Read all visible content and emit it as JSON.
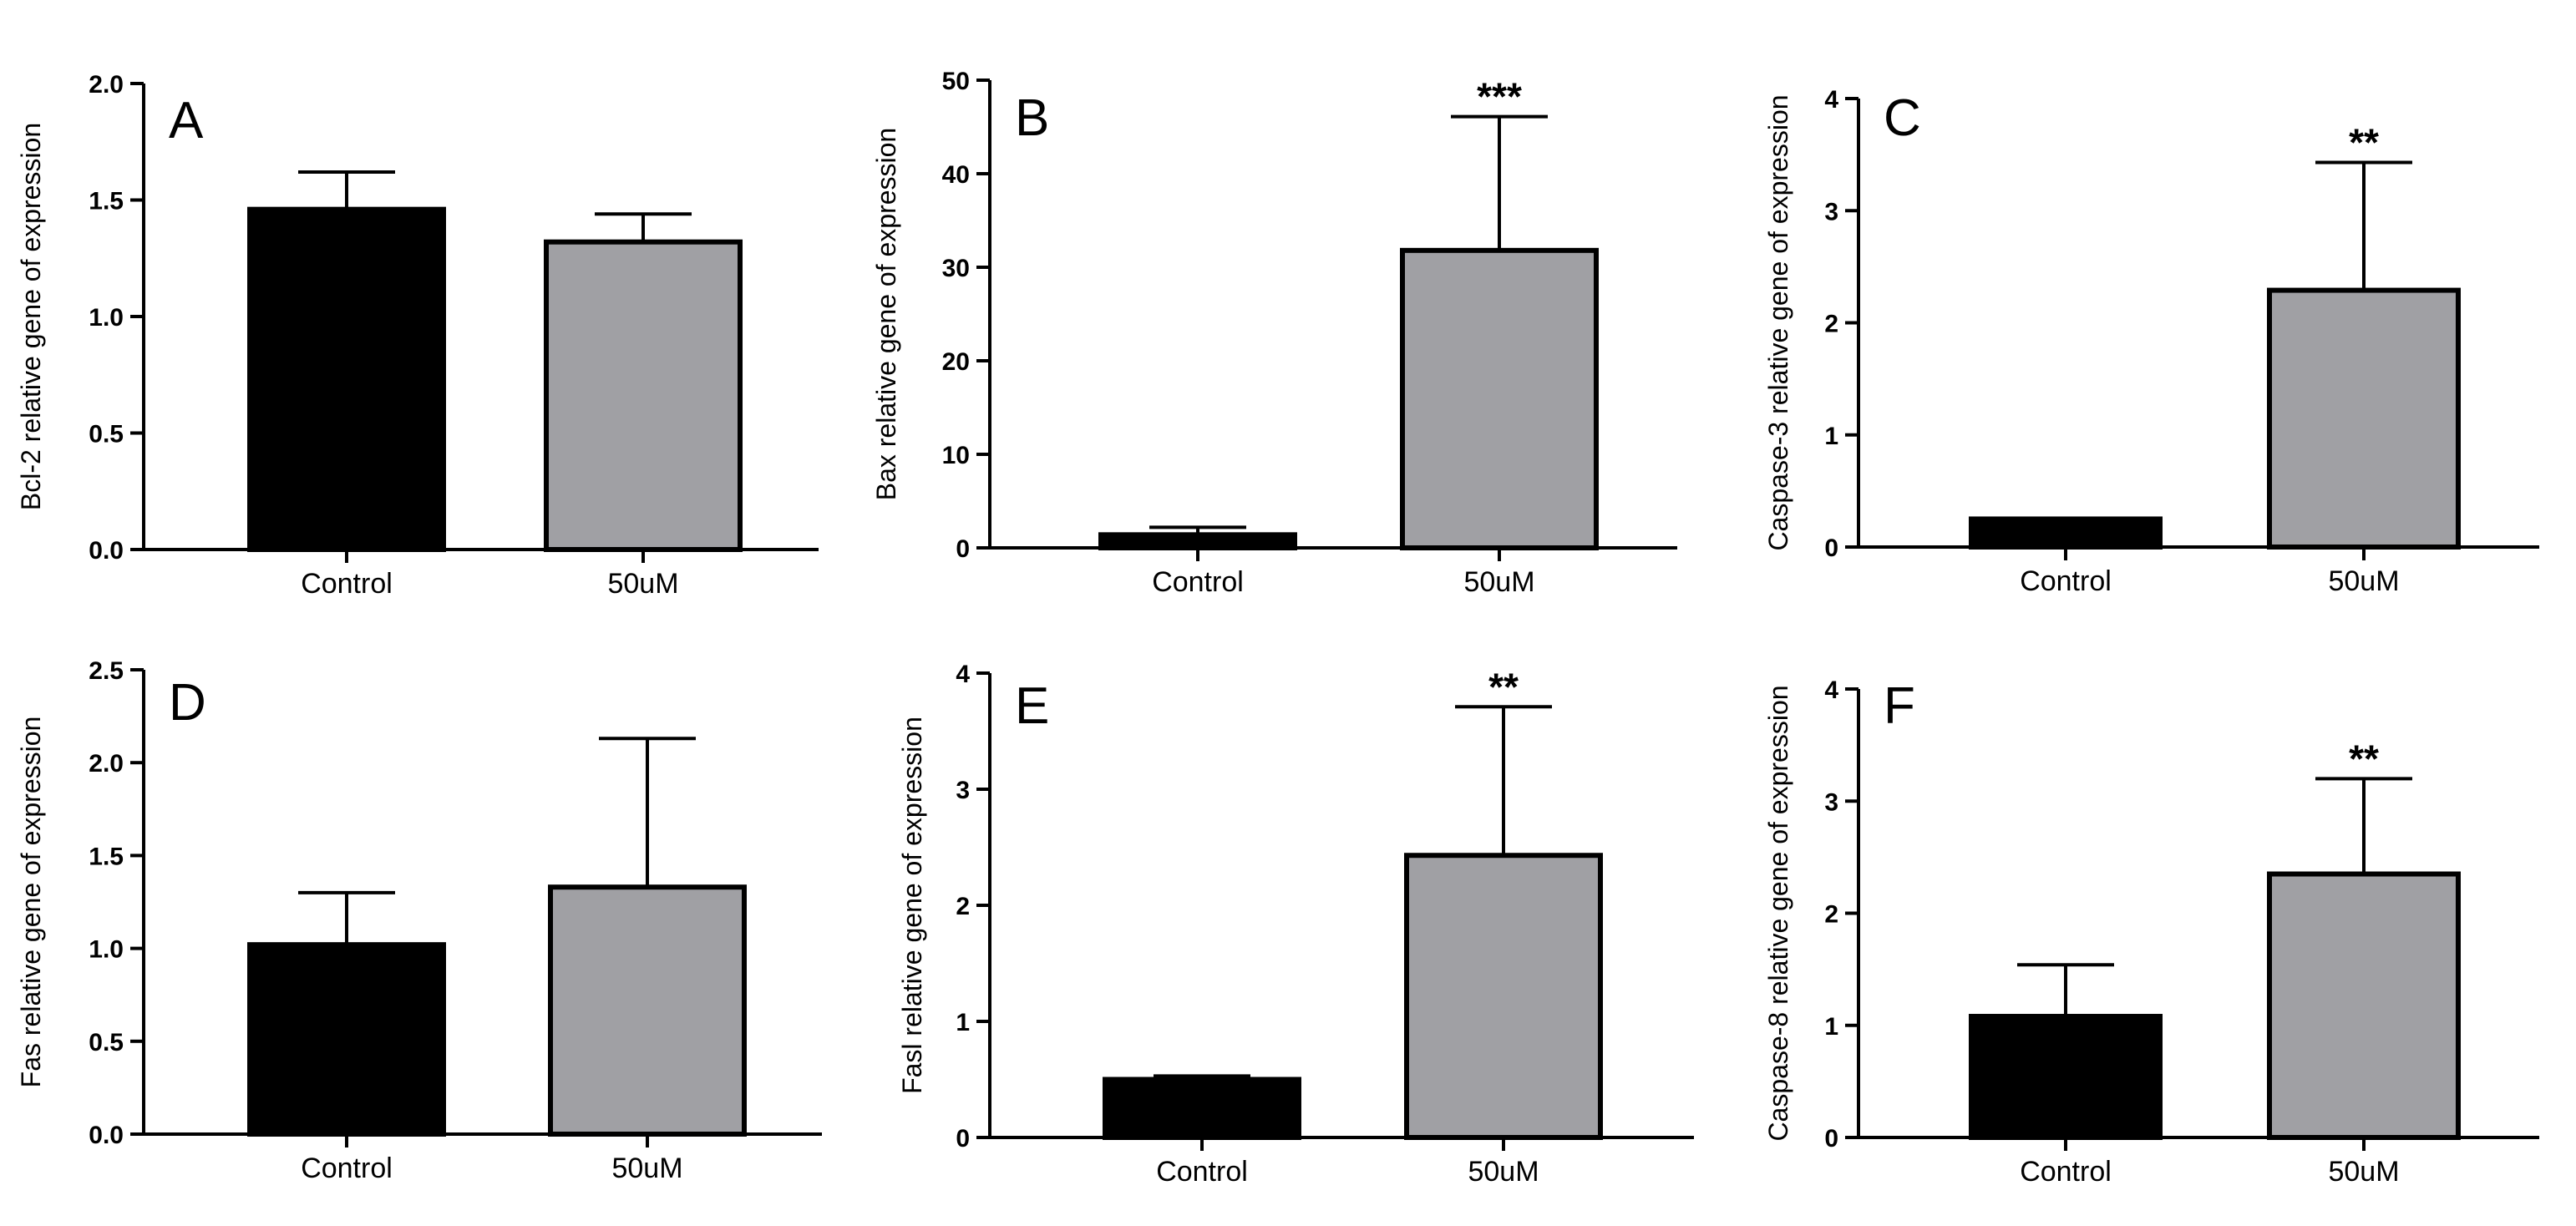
{
  "figure": {
    "caption": ""
  },
  "chart_data": [
    {
      "type": "bar",
      "panel": "A",
      "ylabel": "Bcl-2 relative gene of expression",
      "categories": [
        "Control",
        "50uM"
      ],
      "values": [
        1.46,
        1.32
      ],
      "errors": [
        0.16,
        0.12
      ],
      "ylim": [
        0,
        2.0
      ],
      "yticks": [
        0.0,
        0.5,
        1.0,
        1.5,
        2.0
      ],
      "ytick_labels": [
        "0.0",
        "0.5",
        "1.0",
        "1.5",
        "2.0"
      ],
      "significance": [
        "",
        ""
      ],
      "colors": [
        "#000000",
        "#a0a0a4"
      ]
    },
    {
      "type": "bar",
      "panel": "B",
      "ylabel": "Bax relative gene of expression",
      "categories": [
        "Control",
        "50uM"
      ],
      "values": [
        1.4,
        31.8
      ],
      "errors": [
        0.8,
        14.3
      ],
      "ylim": [
        0,
        50
      ],
      "yticks": [
        0,
        10,
        20,
        30,
        40,
        50
      ],
      "ytick_labels": [
        "0",
        "10",
        "20",
        "30",
        "40",
        "50"
      ],
      "significance": [
        "",
        "***"
      ],
      "colors": [
        "#000000",
        "#a0a0a4"
      ]
    },
    {
      "type": "bar",
      "panel": "C",
      "ylabel": "Caspase-3 relative gene of expression",
      "categories": [
        "Control",
        "50uM"
      ],
      "values": [
        0.25,
        2.29
      ],
      "errors": [
        0.0,
        1.14
      ],
      "ylim": [
        0,
        4
      ],
      "yticks": [
        0,
        1,
        2,
        3,
        4
      ],
      "ytick_labels": [
        "0",
        "1",
        "2",
        "3",
        "4"
      ],
      "significance": [
        "",
        "**"
      ],
      "colors": [
        "#000000",
        "#a0a0a4"
      ]
    },
    {
      "type": "bar",
      "panel": "D",
      "ylabel": "Fas relative gene of expression",
      "categories": [
        "Control",
        "50uM"
      ],
      "values": [
        1.02,
        1.33
      ],
      "errors": [
        0.28,
        0.8
      ],
      "ylim": [
        0,
        2.5
      ],
      "yticks": [
        0.0,
        0.5,
        1.0,
        1.5,
        2.0,
        2.5
      ],
      "ytick_labels": [
        "0.0",
        "0.5",
        "1.0",
        "1.5",
        "2.0",
        "2.5"
      ],
      "significance": [
        "",
        ""
      ],
      "colors": [
        "#000000",
        "#a0a0a4"
      ]
    },
    {
      "type": "bar",
      "panel": "E",
      "ylabel": "Fasl relative gene of expression",
      "categories": [
        "Control",
        "50uM"
      ],
      "values": [
        0.5,
        2.43
      ],
      "errors": [
        0.03,
        1.28
      ],
      "ylim": [
        0,
        4
      ],
      "yticks": [
        0,
        1,
        2,
        3,
        4
      ],
      "ytick_labels": [
        "0",
        "1",
        "2",
        "3",
        "4"
      ],
      "significance": [
        "",
        "**"
      ],
      "colors": [
        "#000000",
        "#a0a0a4"
      ]
    },
    {
      "type": "bar",
      "panel": "F",
      "ylabel": "Caspase-8 relative gene of expression",
      "categories": [
        "Control",
        "50uM"
      ],
      "values": [
        1.08,
        2.35
      ],
      "errors": [
        0.46,
        0.85
      ],
      "ylim": [
        0,
        4
      ],
      "yticks": [
        0,
        1,
        2,
        3,
        4
      ],
      "ytick_labels": [
        "0",
        "1",
        "2",
        "3",
        "4"
      ],
      "significance": [
        "",
        "**"
      ],
      "colors": [
        "#000000",
        "#a0a0a4"
      ]
    }
  ]
}
